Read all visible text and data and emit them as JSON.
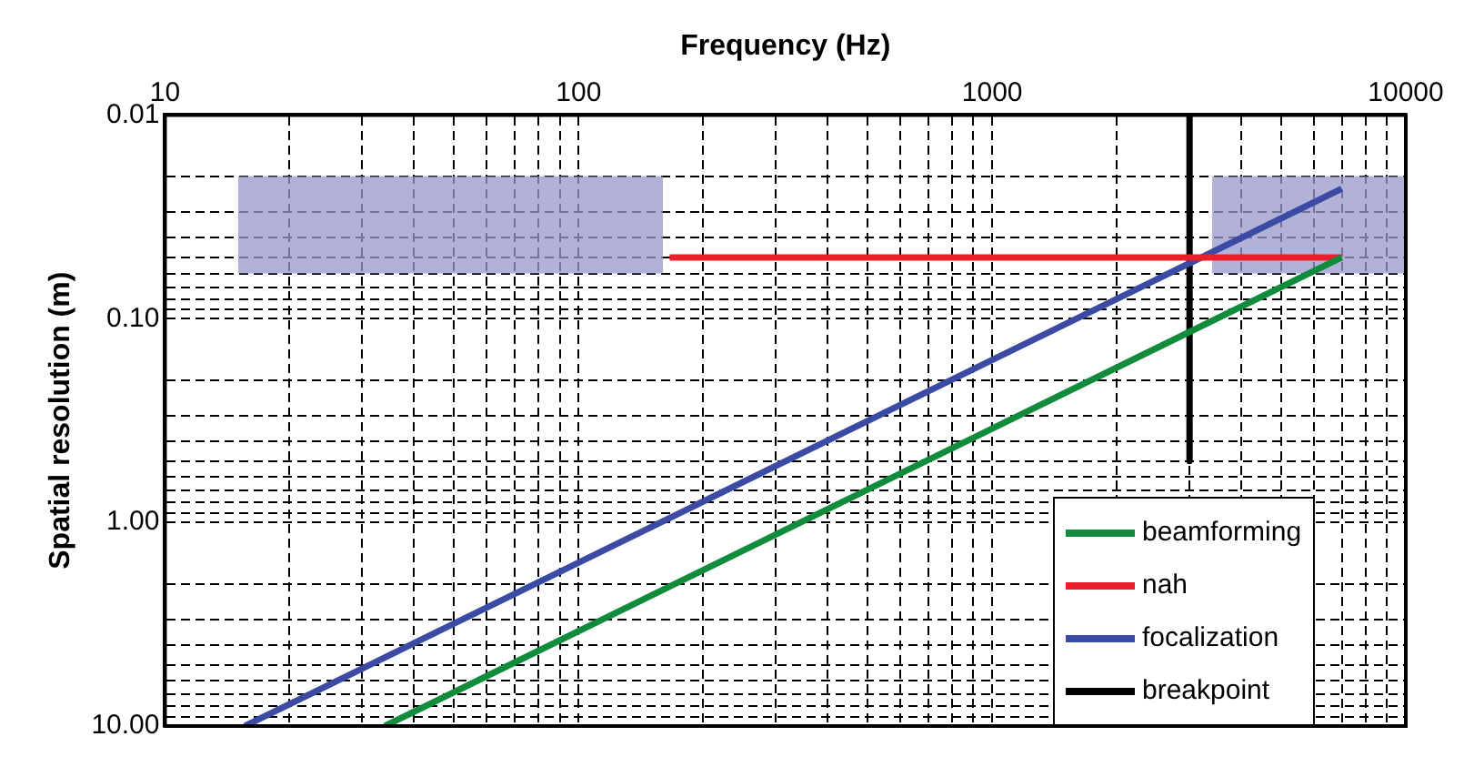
{
  "chart_data": {
    "type": "line",
    "xlabel": "Frequency (Hz)",
    "ylabel": "Spatial resolution (m)",
    "log": "xy",
    "grid": true,
    "legend": "bottom right",
    "xlim": [
      10,
      10000
    ],
    "xticks": [
      10,
      {
        "value": 20,
        "label": null
      },
      {
        "value": 30,
        "label": null
      },
      {
        "value": 40,
        "label": null
      },
      {
        "value": 50,
        "label": null
      },
      {
        "value": 60,
        "label": null
      },
      {
        "value": 70,
        "label": null
      },
      {
        "value": 80,
        "label": null
      },
      {
        "value": 90,
        "label": null
      },
      100,
      {
        "value": 200,
        "label": null
      },
      {
        "value": 300,
        "label": null
      },
      {
        "value": 400,
        "label": null
      },
      {
        "value": 500,
        "label": null
      },
      {
        "value": 600,
        "label": null
      },
      {
        "value": 700,
        "label": null
      },
      {
        "value": 800,
        "label": null
      },
      {
        "value": 900,
        "label": null
      },
      1000,
      {
        "value": 2000,
        "label": null
      },
      {
        "value": 3000,
        "label": null
      },
      {
        "value": 4000,
        "label": null
      },
      {
        "value": 5000,
        "label": null
      },
      {
        "value": 6000,
        "label": null
      },
      {
        "value": 7000,
        "label": null
      },
      {
        "value": 8000,
        "label": null
      },
      {
        "value": 9000,
        "label": null
      },
      10000
    ],
    "ylim": [
      10,
      0.01
    ],
    "yticks": [
      {
        "value": 0.01,
        "label": "0.01"
      },
      {
        "value": 0.02,
        "label": null
      },
      {
        "value": 0.03,
        "label": null
      },
      {
        "value": 0.04,
        "label": null
      },
      {
        "value": 0.05,
        "label": null
      },
      {
        "value": 0.06,
        "label": null
      },
      {
        "value": 0.07,
        "label": null
      },
      {
        "value": 0.08,
        "label": null
      },
      {
        "value": 0.09,
        "label": null
      },
      {
        "value": 0.1,
        "label": "0.10"
      },
      {
        "value": 0.2,
        "label": null
      },
      {
        "value": 0.3,
        "label": null
      },
      {
        "value": 0.4,
        "label": null
      },
      {
        "value": 0.5,
        "label": null
      },
      {
        "value": 0.6,
        "label": null
      },
      {
        "value": 0.7,
        "label": null
      },
      {
        "value": 0.8,
        "label": null
      },
      {
        "value": 0.9,
        "label": null
      },
      {
        "value": 1,
        "label": "1.00"
      },
      {
        "value": 2,
        "label": null
      },
      {
        "value": 3,
        "label": null
      },
      {
        "value": 4,
        "label": null
      },
      {
        "value": 5,
        "label": null
      },
      {
        "value": 6,
        "label": null
      },
      {
        "value": 7,
        "label": null
      },
      {
        "value": 8,
        "label": null
      },
      {
        "value": 9,
        "label": null
      },
      {
        "value": 10,
        "label": "10.00"
      }
    ],
    "series": [
      {
        "color": "#9999cc",
        "x": [
          15,
          160
        ],
        "values": [
          null,
          null
        ],
        "upper": [
          0.02,
          0.02
        ],
        "lower": [
          0.06,
          0.06
        ]
      },
      {
        "color": "#9999cc",
        "x": [
          3400,
          10000
        ],
        "values": [
          null,
          null
        ],
        "upper": [
          0.02,
          0.02
        ],
        "lower": [
          0.06,
          0.06
        ]
      },
      {
        "name": "beamforming",
        "color": "#118c3c",
        "x": [
          34,
          7000
        ],
        "values": [
          10,
          0.05
        ]
      },
      {
        "name": "nah",
        "color": "#e8202a",
        "x": [
          166,
          7000
        ],
        "values": [
          0.05,
          0.05
        ]
      },
      {
        "name": "focalization",
        "color": "#3b4ba3",
        "x": [
          15.6,
          7000
        ],
        "values": [
          10,
          0.023
        ]
      },
      {
        "name": "breakpoint",
        "color": "#000000",
        "x": [
          3000,
          3000
        ],
        "values": [
          0.01,
          0.5
        ]
      }
    ]
  }
}
